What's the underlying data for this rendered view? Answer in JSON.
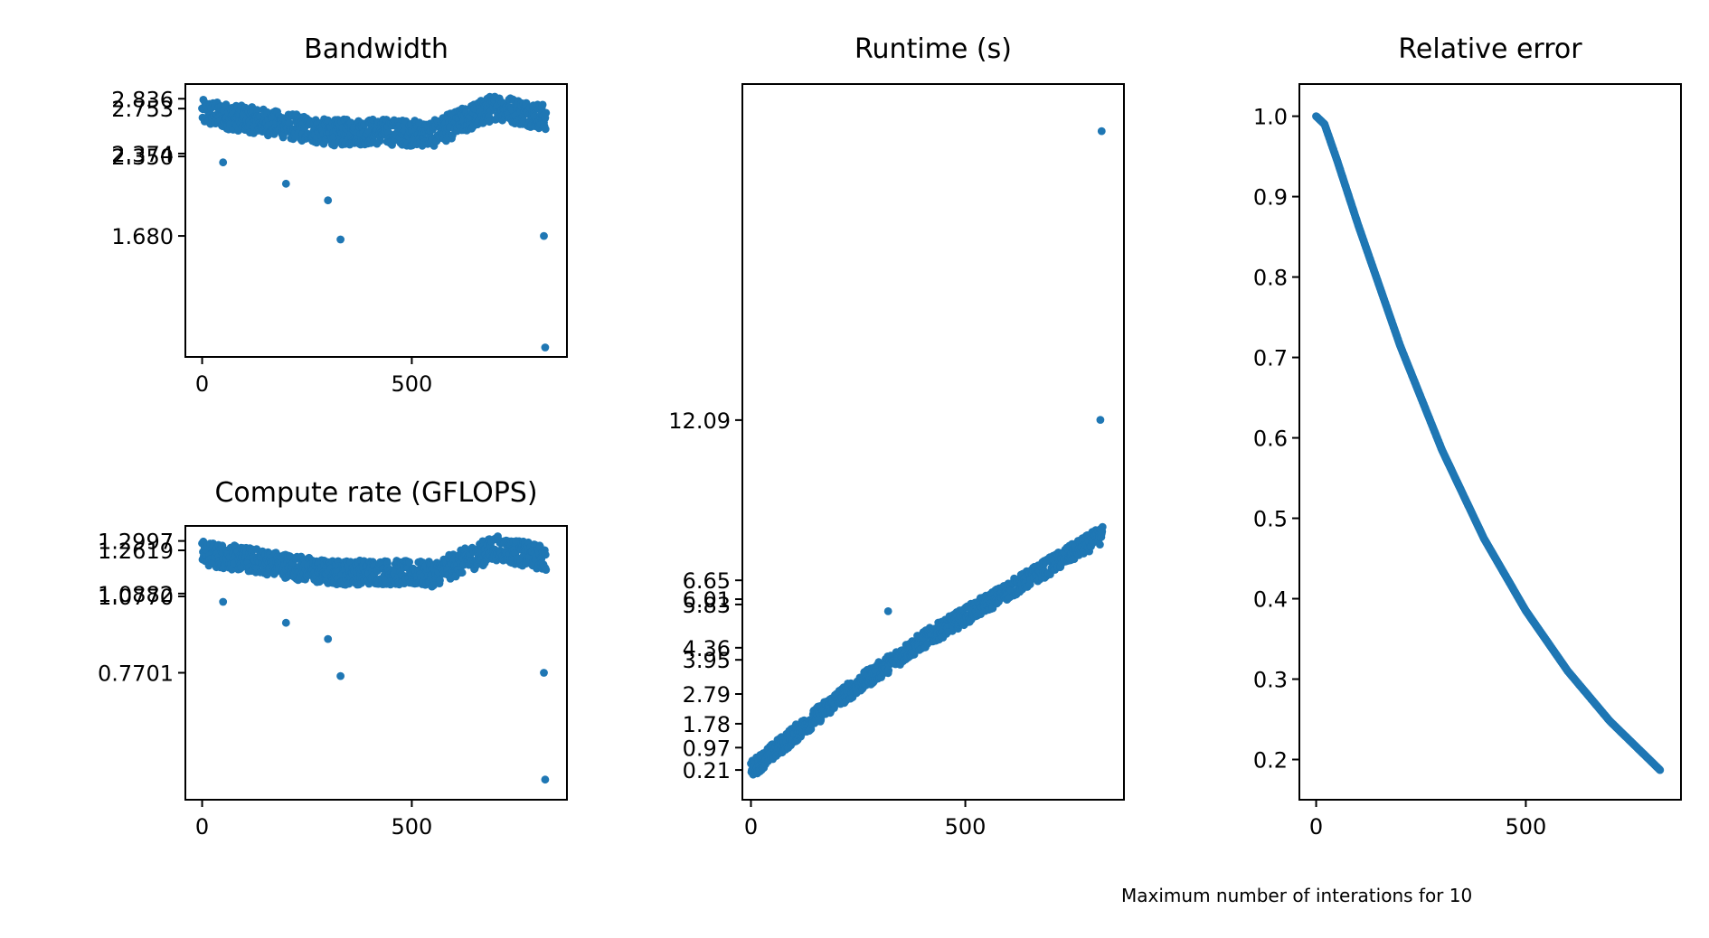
{
  "colors": {
    "marker": "#1f77b4",
    "axes": "#000000",
    "background": "#ffffff"
  },
  "footnote": "Maximum number of interations for 10",
  "chart_data": [
    {
      "id": "bandwidth",
      "type": "scatter",
      "title": "Bandwidth",
      "xlabel": "",
      "ylabel": "",
      "xlim": [
        -40,
        870
      ],
      "ylim": [
        0.66,
        2.96
      ],
      "x_ticks": [
        0,
        500
      ],
      "y_ticks": [
        "1.680",
        "2.350",
        "2.374",
        "2.753",
        "2.836"
      ],
      "grid": false,
      "points": {
        "x_start": 0,
        "x_end": 820,
        "base": [
          [
            0,
            2.72
          ],
          [
            150,
            2.64
          ],
          [
            300,
            2.55
          ],
          [
            420,
            2.56
          ],
          [
            550,
            2.54
          ],
          [
            700,
            2.77
          ],
          [
            820,
            2.68
          ]
        ],
        "jitter": 0.11,
        "outliers": [
          [
            50,
            2.3
          ],
          [
            200,
            2.12
          ],
          [
            300,
            1.98
          ],
          [
            330,
            1.65
          ],
          [
            815,
            1.68
          ],
          [
            818,
            0.74
          ]
        ]
      }
    },
    {
      "id": "compute-rate",
      "type": "scatter",
      "title": "Compute rate (GFLOPS)",
      "xlabel": "",
      "ylabel": "",
      "xlim": [
        -40,
        870
      ],
      "ylim": [
        0.26,
        1.36
      ],
      "x_ticks": [
        0,
        500
      ],
      "y_ticks": [
        "0.7701",
        "1.0770",
        "1.0882",
        "1.2619",
        "1.2997"
      ],
      "grid": false,
      "points": {
        "x_start": 0,
        "x_end": 820,
        "base": [
          [
            0,
            1.25
          ],
          [
            150,
            1.215
          ],
          [
            300,
            1.172
          ],
          [
            420,
            1.175
          ],
          [
            550,
            1.166
          ],
          [
            700,
            1.272
          ],
          [
            820,
            1.229
          ]
        ],
        "jitter": 0.05,
        "outliers": [
          [
            50,
            1.055
          ],
          [
            200,
            0.971
          ],
          [
            300,
            0.906
          ],
          [
            330,
            0.757
          ],
          [
            815,
            0.77
          ],
          [
            818,
            0.341
          ]
        ]
      }
    },
    {
      "id": "runtime",
      "type": "scatter",
      "title": "Runtime (s)",
      "xlabel": "",
      "ylabel": "",
      "xlim": [
        -20,
        870
      ],
      "ylim": [
        -0.8,
        23.5
      ],
      "x_ticks": [
        0,
        500
      ],
      "y_ticks": [
        "0.21",
        "0.97",
        "1.78",
        "2.79",
        "3.95",
        "4.36",
        "5.83",
        "6.01",
        "6.65",
        "12.09"
      ],
      "grid": false,
      "points": {
        "x_start": 0,
        "x_end": 820,
        "base": [
          [
            0,
            0.21
          ],
          [
            200,
            2.6
          ],
          [
            400,
            4.6
          ],
          [
            600,
            6.3
          ],
          [
            820,
            8.2
          ]
        ],
        "jitter": 0.3,
        "outliers": [
          [
            320,
            5.6
          ],
          [
            815,
            12.1
          ],
          [
            818,
            21.9
          ]
        ]
      }
    },
    {
      "id": "relative-error",
      "type": "line",
      "title": "Relative error",
      "xlabel": "",
      "ylabel": "",
      "xlim": [
        -40,
        870
      ],
      "ylim": [
        0.15,
        1.04
      ],
      "x_ticks": [
        0,
        500
      ],
      "y_ticks": [
        "0.2",
        "0.3",
        "0.4",
        "0.5",
        "0.6",
        "0.7",
        "0.8",
        "0.9",
        "1.0"
      ],
      "grid": false,
      "series": [
        {
          "x": [
            0,
            20,
            50,
            100,
            200,
            300,
            400,
            500,
            600,
            700,
            820
          ],
          "y": [
            1.0,
            0.99,
            0.945,
            0.865,
            0.715,
            0.585,
            0.475,
            0.385,
            0.31,
            0.248,
            0.187
          ]
        }
      ]
    }
  ]
}
